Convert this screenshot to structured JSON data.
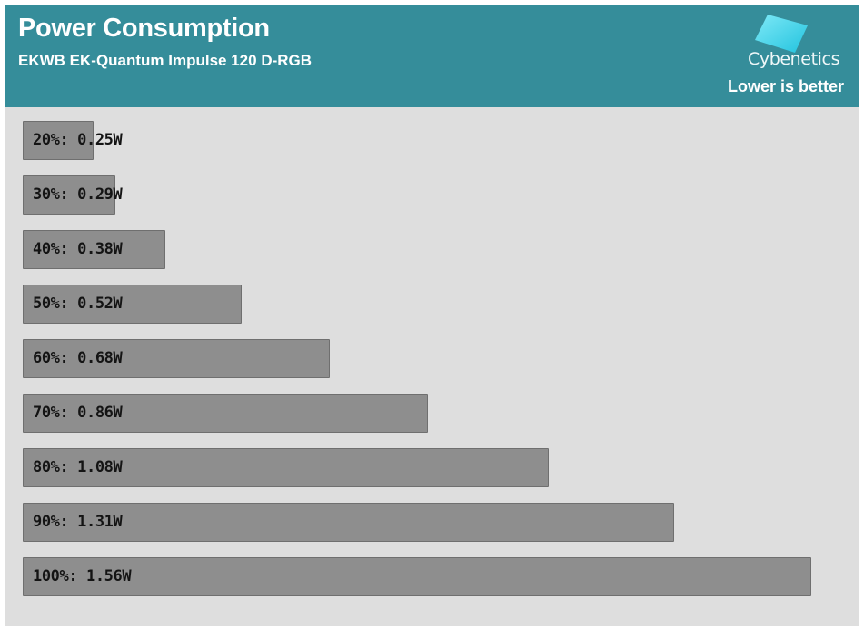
{
  "header": {
    "title": "Power Consumption",
    "subtitle": "EKWB EK-Quantum Impulse 120 D-RGB",
    "brand": "Cybenetics",
    "note": "Lower is better"
  },
  "colors": {
    "header_bg": "#358d9a",
    "plot_bg": "#dedede",
    "bar_fill": "#8e8e8e",
    "logo_cyan": "#35d4ea"
  },
  "chart_data": {
    "type": "bar",
    "orientation": "horizontal",
    "categories": [
      "20%",
      "30%",
      "40%",
      "50%",
      "60%",
      "70%",
      "80%",
      "90%",
      "100%"
    ],
    "values": [
      0.25,
      0.29,
      0.38,
      0.52,
      0.68,
      0.86,
      1.08,
      1.31,
      1.56
    ],
    "labels": [
      "20%: 0.25W",
      "30%: 0.29W",
      "40%: 0.38W",
      "50%: 0.52W",
      "60%: 0.68W",
      "70%: 0.86W",
      "80%: 1.08W",
      "90%: 1.31W",
      "100%: 1.56W"
    ],
    "unit": "W",
    "title": "Power Consumption",
    "subtitle": "EKWB EK-Quantum Impulse 120 D-RGB",
    "xlabel": "",
    "ylabel": "",
    "xlim": [
      0.12,
      1.56
    ],
    "grid": false,
    "legend": "none"
  }
}
